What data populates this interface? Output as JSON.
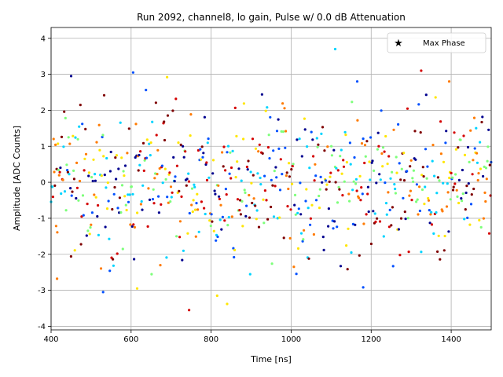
{
  "chart_data": {
    "type": "scatter",
    "title": "Run 2092, channel8, lo gain, Pulse w/ 0.0 dB Attenuation",
    "xlabel": "Time [ns]",
    "ylabel": "Amplitude [ADC Counts]",
    "xlim": [
      400,
      1500
    ],
    "ylim": [
      -4.1,
      4.3
    ],
    "xticks": [
      400,
      600,
      800,
      1000,
      1200,
      1400
    ],
    "yticks": [
      -4,
      -3,
      -2,
      -1,
      0,
      1,
      2,
      3,
      4
    ],
    "grid": true,
    "legend": {
      "position": "top-right",
      "entries": [
        "Max Phase"
      ]
    },
    "series_colors": [
      "#00008f",
      "#0050ff",
      "#00d4ff",
      "#7dff7a",
      "#ffe600",
      "#ff7a00",
      "#d40000",
      "#7f0000"
    ],
    "point_spacing_ns": 1.56,
    "noise_sigma": 1.0,
    "highlight_points": [
      {
        "x": 1110,
        "y": 3.7,
        "color": "#00d4ff"
      },
      {
        "x": 1325,
        "y": 3.1,
        "color": "#d40000"
      },
      {
        "x": 605,
        "y": 3.05,
        "color": "#0050ff"
      },
      {
        "x": 450,
        "y": 2.95,
        "color": "#00008f"
      },
      {
        "x": 690,
        "y": 2.92,
        "color": "#ffe600"
      },
      {
        "x": 1165,
        "y": 2.8,
        "color": "#0050ff"
      },
      {
        "x": 1395,
        "y": 2.8,
        "color": "#ff7a00"
      },
      {
        "x": 745,
        "y": -3.55,
        "color": "#d40000"
      },
      {
        "x": 840,
        "y": -3.38,
        "color": "#ffe600"
      },
      {
        "x": 815,
        "y": -3.15,
        "color": "#ffe600"
      },
      {
        "x": 530,
        "y": -3.05,
        "color": "#0050ff"
      },
      {
        "x": 1180,
        "y": -2.92,
        "color": "#0050ff"
      },
      {
        "x": 615,
        "y": -2.95,
        "color": "#ffe600"
      },
      {
        "x": 415,
        "y": -2.68,
        "color": "#ff7a00"
      }
    ]
  }
}
